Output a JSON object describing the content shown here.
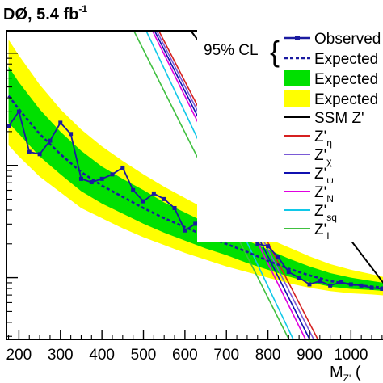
{
  "chart_data": {
    "type": "line",
    "title": "DØ, 5.4 fb",
    "title_sup": "-1",
    "xlabel_main": "M",
    "xlabel_sub": "Z'",
    "xlabel_unit": " (",
    "xlim": [
      170,
      1085
    ],
    "ylim_log": [
      -0.55,
      2.2
    ],
    "x_ticks": [
      200,
      300,
      400,
      500,
      600,
      700,
      800,
      900,
      1000
    ],
    "x_tick_labels": [
      "200",
      "300",
      "400",
      "500",
      "600",
      "700",
      "800",
      "900",
      "1000"
    ],
    "y_tick_labels": [],
    "legend": {
      "cl_label": "95% CL",
      "observed": "Observed",
      "expected": "Expected",
      "one_sigma": "Expected",
      "two_sigma": "Expected"
    },
    "models": [
      {
        "main": "SSM Z'",
        "sub": "",
        "color": "#000000"
      },
      {
        "main": "Z'",
        "sub": "η",
        "color": "#d62020"
      },
      {
        "main": "Z'",
        "sub": "χ",
        "color": "#7a5ad6"
      },
      {
        "main": "Z'",
        "sub": "ψ",
        "color": "#1010b0"
      },
      {
        "main": "Z'",
        "sub": "N",
        "color": "#e000e0"
      },
      {
        "main": "Z'",
        "sub": "sq",
        "color": "#10c8e8"
      },
      {
        "main": "Z'",
        "sub": "I",
        "color": "#40c040"
      }
    ],
    "observed": {
      "x": [
        175,
        200,
        225,
        250,
        275,
        300,
        325,
        350,
        375,
        400,
        425,
        450,
        475,
        500,
        525,
        550,
        575,
        600,
        625,
        650,
        675,
        700,
        725,
        750,
        775,
        800,
        825,
        850,
        875,
        900,
        925,
        950,
        975,
        1000,
        1025,
        1050,
        1075
      ],
      "y": [
        1.35,
        1.48,
        1.12,
        1.1,
        1.22,
        1.38,
        1.28,
        0.88,
        0.85,
        0.88,
        0.92,
        0.98,
        0.78,
        0.68,
        0.75,
        0.7,
        0.62,
        0.42,
        0.48,
        0.55,
        0.42,
        0.44,
        0.4,
        0.45,
        0.3,
        0.28,
        0.18,
        0.05,
        0.0,
        -0.06,
        -0.03,
        -0.07,
        -0.04,
        -0.06,
        -0.07,
        -0.09,
        -0.1
      ]
    },
    "expected": {
      "x": [
        175,
        200,
        250,
        300,
        350,
        400,
        450,
        500,
        550,
        600,
        650,
        700,
        750,
        800,
        850,
        900,
        950,
        1000,
        1050,
        1085
      ],
      "y": [
        1.62,
        1.5,
        1.28,
        1.1,
        0.94,
        0.82,
        0.72,
        0.62,
        0.53,
        0.45,
        0.37,
        0.3,
        0.23,
        0.15,
        0.08,
        0.02,
        -0.03,
        -0.06,
        -0.08,
        -0.09
      ]
    },
    "band_1sigma": {
      "x": [
        175,
        200,
        250,
        300,
        350,
        400,
        450,
        500,
        550,
        600,
        650,
        700,
        750,
        800,
        850,
        900,
        950,
        1000,
        1050,
        1085
      ],
      "low": [
        1.38,
        1.28,
        1.08,
        0.92,
        0.77,
        0.66,
        0.57,
        0.48,
        0.4,
        0.33,
        0.26,
        0.2,
        0.13,
        0.07,
        0.01,
        -0.04,
        -0.08,
        -0.1,
        -0.11,
        -0.12
      ],
      "high": [
        1.88,
        1.74,
        1.5,
        1.3,
        1.13,
        0.99,
        0.88,
        0.78,
        0.67,
        0.58,
        0.49,
        0.41,
        0.33,
        0.25,
        0.17,
        0.1,
        0.04,
        0.0,
        -0.03,
        -0.05
      ]
    },
    "band_2sigma": {
      "x": [
        175,
        200,
        250,
        300,
        350,
        400,
        450,
        500,
        550,
        600,
        650,
        700,
        750,
        800,
        850,
        900,
        950,
        1000,
        1050,
        1085
      ],
      "low": [
        1.18,
        1.08,
        0.9,
        0.76,
        0.62,
        0.53,
        0.44,
        0.36,
        0.29,
        0.22,
        0.16,
        0.1,
        0.05,
        0.0,
        -0.05,
        -0.09,
        -0.12,
        -0.14,
        -0.15,
        -0.16
      ],
      "high": [
        2.12,
        1.98,
        1.72,
        1.5,
        1.32,
        1.17,
        1.04,
        0.92,
        0.81,
        0.71,
        0.61,
        0.52,
        0.44,
        0.35,
        0.27,
        0.19,
        0.12,
        0.07,
        0.03,
        0.0
      ]
    },
    "theory_lines": [
      {
        "model_index": 0,
        "x": [
          610,
          1085
        ],
        "y": [
          2.22,
          -0.08
        ]
      },
      {
        "model_index": 1,
        "x": [
          530,
          930
        ],
        "y": [
          2.25,
          -0.62
        ]
      },
      {
        "model_index": 2,
        "x": [
          525,
          920
        ],
        "y": [
          2.25,
          -0.62
        ]
      },
      {
        "model_index": 3,
        "x": [
          520,
          910
        ],
        "y": [
          2.25,
          -0.62
        ]
      },
      {
        "model_index": 4,
        "x": [
          515,
          900
        ],
        "y": [
          2.25,
          -0.62
        ]
      },
      {
        "model_index": 5,
        "x": [
          500,
          870
        ],
        "y": [
          2.25,
          -0.62
        ]
      },
      {
        "model_index": 6,
        "x": [
          470,
          860
        ],
        "y": [
          2.25,
          -0.62
        ]
      }
    ]
  }
}
